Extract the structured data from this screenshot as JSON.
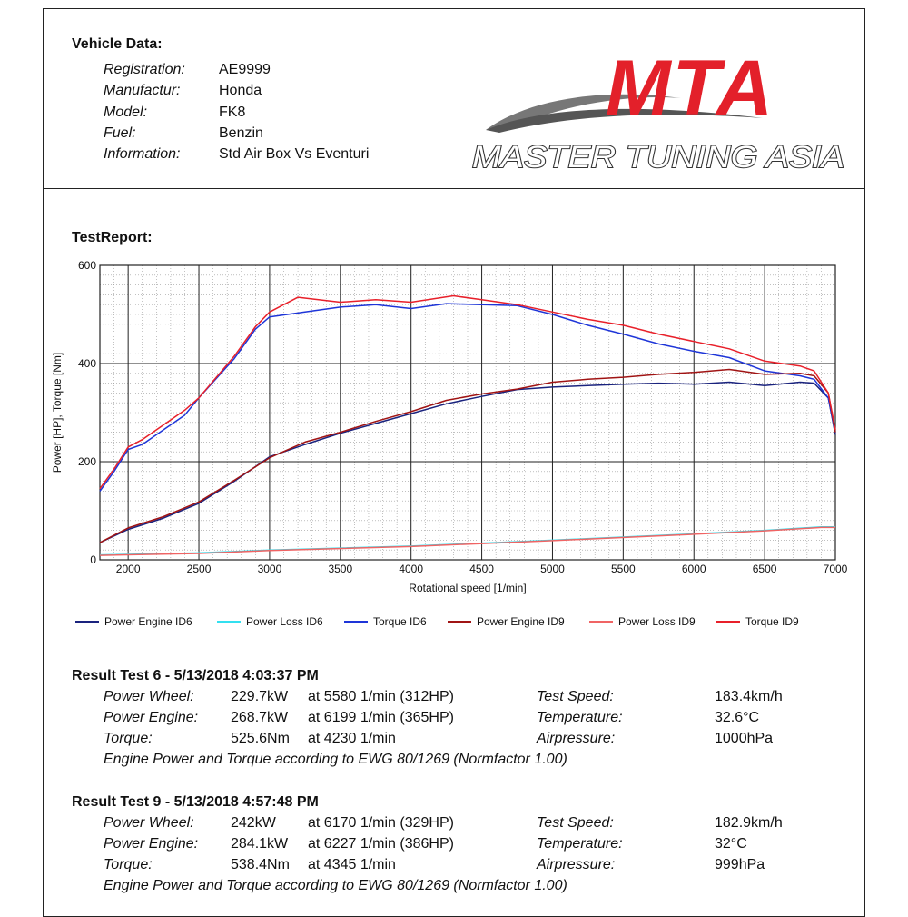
{
  "vehicle": {
    "heading": "Vehicle Data:",
    "rows": [
      {
        "label": "Registration:",
        "value": "AE9999"
      },
      {
        "label": "Manufactur:",
        "value": "Honda"
      },
      {
        "label": "Model:",
        "value": "FK8"
      },
      {
        "label": "Fuel:",
        "value": "Benzin"
      },
      {
        "label": "Information:",
        "value": "Std Air Box Vs Eventuri"
      }
    ]
  },
  "logo": {
    "mark": "MTA",
    "tagline": "MASTER TUNING ASIA"
  },
  "report_heading": "TestReport:",
  "chart_data": {
    "type": "line",
    "xlabel": "Rotational  speed [1/min]",
    "ylabel": "Power [HP], Torque [Nm]",
    "xlim": [
      1800,
      7000
    ],
    "ylim": [
      0,
      600
    ],
    "x_ticks": [
      2000,
      2500,
      3000,
      3500,
      4000,
      4500,
      5000,
      5500,
      6000,
      6500,
      7000
    ],
    "y_ticks": [
      0,
      200,
      400,
      600
    ],
    "grid": true,
    "legend_position": "bottom",
    "series": [
      {
        "name": "Power Engine ID6",
        "color": "#1a237e",
        "points": [
          [
            1800,
            35
          ],
          [
            2000,
            62
          ],
          [
            2250,
            85
          ],
          [
            2500,
            115
          ],
          [
            2750,
            160
          ],
          [
            3000,
            210
          ],
          [
            3250,
            235
          ],
          [
            3500,
            258
          ],
          [
            3750,
            278
          ],
          [
            4000,
            298
          ],
          [
            4250,
            318
          ],
          [
            4500,
            333
          ],
          [
            4750,
            347
          ],
          [
            5000,
            352
          ],
          [
            5250,
            355
          ],
          [
            5500,
            358
          ],
          [
            5750,
            360
          ],
          [
            6000,
            358
          ],
          [
            6250,
            362
          ],
          [
            6500,
            355
          ],
          [
            6750,
            362
          ],
          [
            6850,
            360
          ],
          [
            6950,
            330
          ],
          [
            7000,
            255
          ]
        ]
      },
      {
        "name": "Power Loss ID6",
        "color": "#33e0f0",
        "points": [
          [
            1800,
            10
          ],
          [
            2500,
            14
          ],
          [
            3000,
            20
          ],
          [
            4000,
            28
          ],
          [
            5000,
            40
          ],
          [
            6000,
            53
          ],
          [
            6500,
            60
          ],
          [
            6900,
            67
          ],
          [
            7000,
            67
          ]
        ]
      },
      {
        "name": "Torque ID6",
        "color": "#1e35d8",
        "points": [
          [
            1800,
            140
          ],
          [
            1900,
            180
          ],
          [
            2000,
            225
          ],
          [
            2100,
            235
          ],
          [
            2250,
            265
          ],
          [
            2400,
            295
          ],
          [
            2500,
            330
          ],
          [
            2750,
            410
          ],
          [
            2900,
            470
          ],
          [
            3000,
            495
          ],
          [
            3250,
            505
          ],
          [
            3500,
            515
          ],
          [
            3750,
            520
          ],
          [
            4000,
            512
          ],
          [
            4250,
            522
          ],
          [
            4500,
            520
          ],
          [
            4750,
            518
          ],
          [
            5000,
            500
          ],
          [
            5250,
            478
          ],
          [
            5500,
            460
          ],
          [
            5750,
            440
          ],
          [
            6000,
            425
          ],
          [
            6250,
            412
          ],
          [
            6500,
            385
          ],
          [
            6750,
            375
          ],
          [
            6850,
            368
          ],
          [
            6950,
            330
          ],
          [
            7000,
            260
          ]
        ]
      },
      {
        "name": "Power Engine ID9",
        "color": "#a01414",
        "points": [
          [
            1800,
            35
          ],
          [
            2000,
            65
          ],
          [
            2250,
            88
          ],
          [
            2500,
            118
          ],
          [
            2750,
            162
          ],
          [
            3000,
            208
          ],
          [
            3250,
            240
          ],
          [
            3500,
            260
          ],
          [
            3750,
            282
          ],
          [
            4000,
            302
          ],
          [
            4250,
            325
          ],
          [
            4500,
            338
          ],
          [
            4750,
            348
          ],
          [
            5000,
            362
          ],
          [
            5250,
            368
          ],
          [
            5500,
            372
          ],
          [
            5750,
            378
          ],
          [
            6000,
            382
          ],
          [
            6250,
            388
          ],
          [
            6500,
            378
          ],
          [
            6750,
            380
          ],
          [
            6850,
            375
          ],
          [
            6950,
            340
          ],
          [
            7000,
            260
          ]
        ]
      },
      {
        "name": "Power Loss ID9",
        "color": "#f06464",
        "points": [
          [
            1800,
            9
          ],
          [
            2500,
            13
          ],
          [
            3000,
            19
          ],
          [
            4000,
            27
          ],
          [
            5000,
            39
          ],
          [
            6000,
            52
          ],
          [
            6500,
            59
          ],
          [
            6900,
            66
          ],
          [
            7000,
            66
          ]
        ]
      },
      {
        "name": "Torque ID9",
        "color": "#e8202a",
        "points": [
          [
            1800,
            145
          ],
          [
            1900,
            185
          ],
          [
            2000,
            230
          ],
          [
            2100,
            245
          ],
          [
            2250,
            275
          ],
          [
            2400,
            305
          ],
          [
            2500,
            330
          ],
          [
            2750,
            415
          ],
          [
            2900,
            475
          ],
          [
            3000,
            505
          ],
          [
            3200,
            535
          ],
          [
            3500,
            525
          ],
          [
            3750,
            530
          ],
          [
            4000,
            525
          ],
          [
            4300,
            538
          ],
          [
            4500,
            530
          ],
          [
            4750,
            520
          ],
          [
            5000,
            505
          ],
          [
            5250,
            490
          ],
          [
            5500,
            478
          ],
          [
            5750,
            460
          ],
          [
            6000,
            445
          ],
          [
            6250,
            430
          ],
          [
            6500,
            405
          ],
          [
            6750,
            395
          ],
          [
            6850,
            385
          ],
          [
            6950,
            340
          ],
          [
            7000,
            265
          ]
        ]
      }
    ]
  },
  "results": [
    {
      "heading": "Result Test 6 - 5/13/2018 4:03:37 PM",
      "rows": [
        {
          "label": "Power Wheel:",
          "value": "229.7kW",
          "at": "at 5580 1/min (312HP)",
          "label2": "Test Speed:",
          "value2": "183.4km/h"
        },
        {
          "label": "Power Engine:",
          "value": "268.7kW",
          "at": "at 6199 1/min (365HP)",
          "label2": "Temperature:",
          "value2": "32.6°C"
        },
        {
          "label": "Torque:",
          "value": "525.6Nm",
          "at": "at 4230 1/min",
          "label2": "Airpressure:",
          "value2": "1000hPa"
        }
      ],
      "note": "Engine Power and Torque according to EWG 80/1269 (Normfactor 1.00)"
    },
    {
      "heading": "Result Test 9 - 5/13/2018 4:57:48 PM",
      "rows": [
        {
          "label": "Power Wheel:",
          "value": "242kW",
          "at": "at 6170 1/min (329HP)",
          "label2": "Test Speed:",
          "value2": "182.9km/h"
        },
        {
          "label": "Power Engine:",
          "value": "284.1kW",
          "at": "at 6227 1/min (386HP)",
          "label2": "Temperature:",
          "value2": "32°C"
        },
        {
          "label": "Torque:",
          "value": "538.4Nm",
          "at": "at 4345 1/min",
          "label2": "Airpressure:",
          "value2": "999hPa"
        }
      ],
      "note": "Engine Power and Torque according to EWG 80/1269 (Normfactor 1.00)"
    }
  ]
}
